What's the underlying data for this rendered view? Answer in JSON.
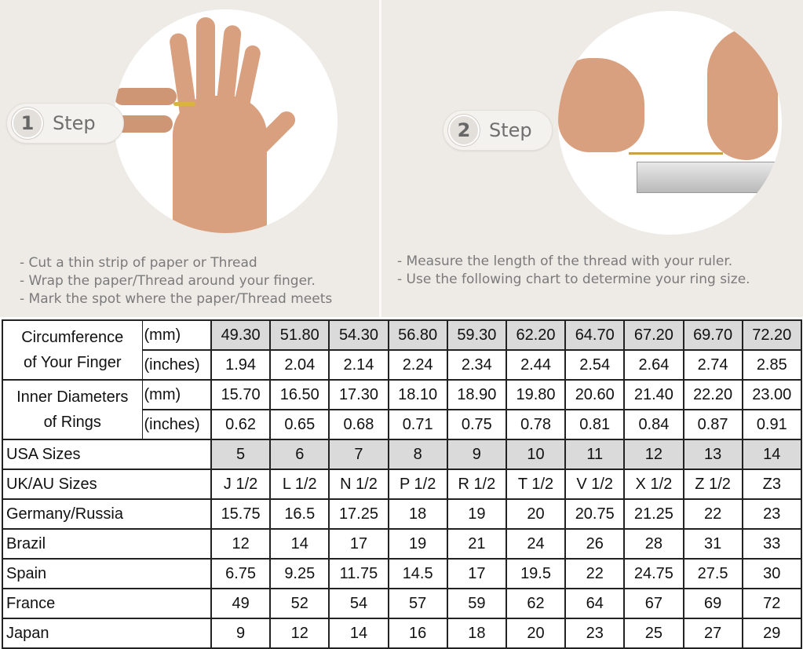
{
  "steps": [
    {
      "number": "1",
      "label": "Step",
      "instructions": [
        "- Cut a thin strip of paper or Thread",
        "- Wrap the paper/Thread around your finger.",
        "- Mark the spot where the paper/Thread meets"
      ]
    },
    {
      "number": "2",
      "label": "Step",
      "instructions": [
        "- Measure the length of the thread with your ruler.",
        "- Use the following chart to determine your ring size."
      ]
    }
  ],
  "colors": {
    "background": "#eeebe7",
    "shade": "#dadada",
    "border": "#222222"
  },
  "table": {
    "groups": [
      {
        "label_line1": "Circumference",
        "label_line2": "of Your Finger",
        "rows": [
          {
            "unit": "(mm)",
            "values": [
              "49.30",
              "51.80",
              "54.30",
              "56.80",
              "59.30",
              "62.20",
              "64.70",
              "67.20",
              "69.70",
              "72.20"
            ],
            "shaded": true
          },
          {
            "unit": "(inches)",
            "values": [
              "1.94",
              "2.04",
              "2.14",
              "2.24",
              "2.34",
              "2.44",
              "2.54",
              "2.64",
              "2.74",
              "2.85"
            ],
            "shaded": false
          }
        ]
      },
      {
        "label_line1": "Inner Diameters",
        "label_line2": "of Rings",
        "rows": [
          {
            "unit": "(mm)",
            "values": [
              "15.70",
              "16.50",
              "17.30",
              "18.10",
              "18.90",
              "19.80",
              "20.60",
              "21.40",
              "22.20",
              "23.00"
            ],
            "shaded": false
          },
          {
            "unit": "(inches)",
            "values": [
              "0.62",
              "0.65",
              "0.68",
              "0.71",
              "0.75",
              "0.78",
              "0.81",
              "0.84",
              "0.87",
              "0.91"
            ],
            "shaded": false
          }
        ]
      }
    ],
    "rows": [
      {
        "label": "USA Sizes",
        "values": [
          "5",
          "6",
          "7",
          "8",
          "9",
          "10",
          "11",
          "12",
          "13",
          "14"
        ],
        "shaded": true
      },
      {
        "label": "UK/AU Sizes",
        "values": [
          "J 1/2",
          "L 1/2",
          "N 1/2",
          "P 1/2",
          "R 1/2",
          "T 1/2",
          "V 1/2",
          "X 1/2",
          "Z 1/2",
          "Z3"
        ],
        "shaded": false
      },
      {
        "label": "Germany/Russia",
        "values": [
          "15.75",
          "16.5",
          "17.25",
          "18",
          "19",
          "20",
          "20.75",
          "21.25",
          "22",
          "23"
        ],
        "shaded": false
      },
      {
        "label": "Brazil",
        "values": [
          "12",
          "14",
          "17",
          "19",
          "21",
          "24",
          "26",
          "28",
          "31",
          "33"
        ],
        "shaded": false
      },
      {
        "label": "Spain",
        "values": [
          "6.75",
          "9.25",
          "11.75",
          "14.5",
          "17",
          "19.5",
          "22",
          "24.75",
          "27.5",
          "30"
        ],
        "shaded": false
      },
      {
        "label": "France",
        "values": [
          "49",
          "52",
          "54",
          "57",
          "59",
          "62",
          "64",
          "67",
          "69",
          "72"
        ],
        "shaded": false
      },
      {
        "label": "Japan",
        "values": [
          "9",
          "12",
          "14",
          "16",
          "18",
          "20",
          "23",
          "25",
          "27",
          "29"
        ],
        "shaded": false
      }
    ]
  }
}
